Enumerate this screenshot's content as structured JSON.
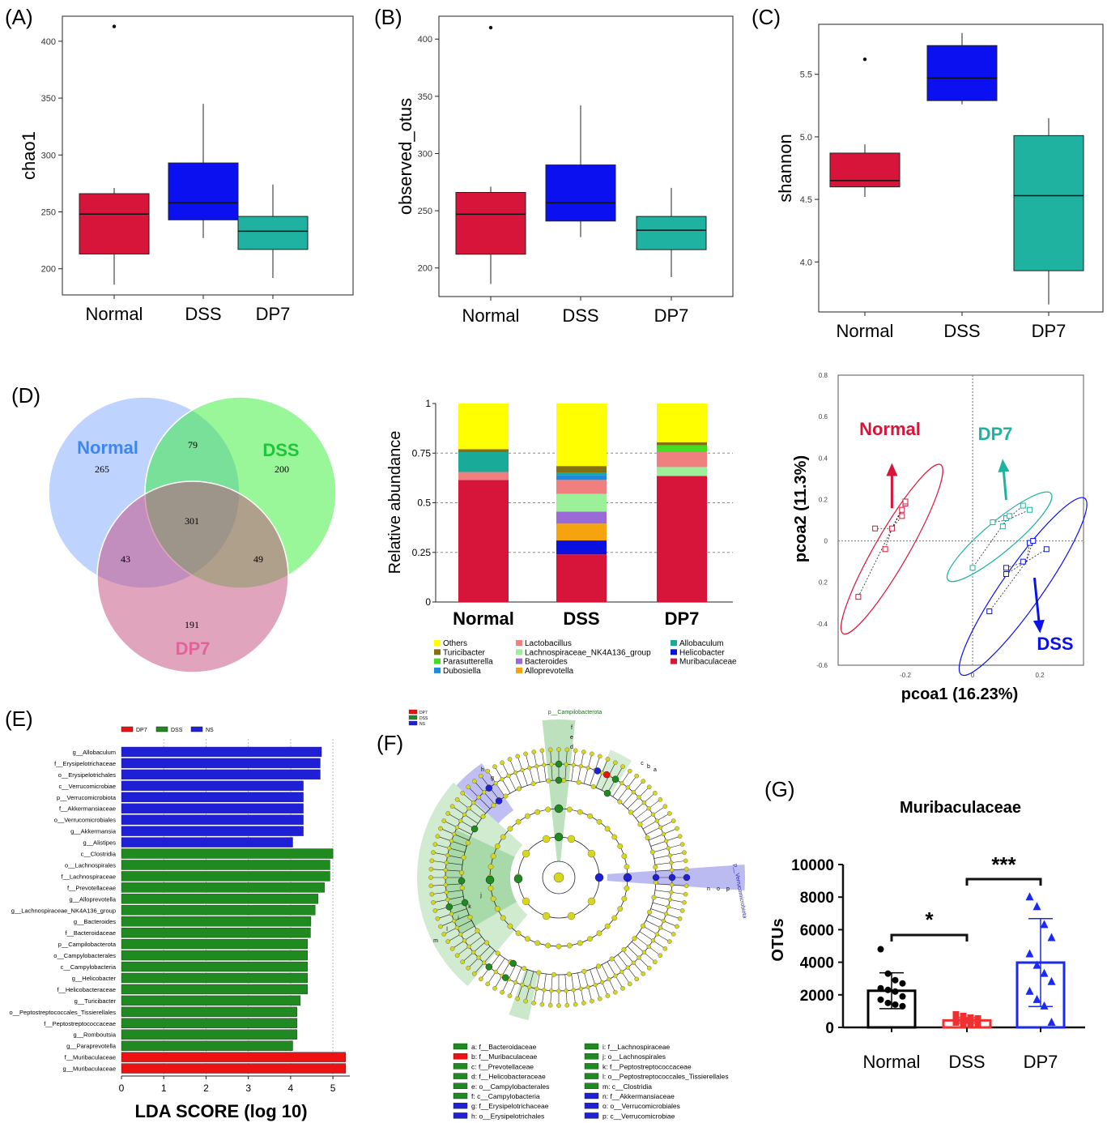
{
  "panel_labels": [
    "(A)",
    "(B)",
    "(C)",
    "(D)",
    "(E)",
    "(F)",
    "(G)"
  ],
  "colors": {
    "normal": "#d7153a",
    "dss": "#0a10f0",
    "dp7": "#20b2a0",
    "lefse_dp7": "#ee1111",
    "lefse_dss": "#1f8a1f",
    "lefse_ns": "#1f1fd6",
    "venn_normal": "#7fa8ff",
    "venn_dss": "#33ee33",
    "venn_dp7": "#c44a7c"
  },
  "chart_data": [
    {
      "id": "A",
      "type": "box",
      "ylabel": "chao1",
      "categories": [
        "Normal",
        "DSS",
        "DP7"
      ],
      "ylim": [
        177,
        422
      ],
      "yticks": [
        200,
        250,
        300,
        350,
        400
      ],
      "boxes": [
        {
          "min": 186,
          "q1": 213,
          "median": 248,
          "q3": 266,
          "max": 271,
          "outliers": [
            413
          ]
        },
        {
          "min": 227,
          "q1": 243,
          "median": 258,
          "q3": 293,
          "max": 345,
          "outliers": []
        },
        {
          "min": 192,
          "q1": 217,
          "median": 233,
          "q3": 246,
          "max": 274,
          "outliers": []
        }
      ]
    },
    {
      "id": "B",
      "type": "box",
      "ylabel": "observed_otus",
      "categories": [
        "Normal",
        "DSS",
        "DP7"
      ],
      "ylim": [
        175,
        420
      ],
      "yticks": [
        200,
        250,
        300,
        350,
        400
      ],
      "boxes": [
        {
          "min": 186,
          "q1": 212,
          "median": 247,
          "q3": 266,
          "max": 271,
          "outliers": [
            410
          ]
        },
        {
          "min": 227,
          "q1": 241,
          "median": 257,
          "q3": 290,
          "max": 342,
          "outliers": []
        },
        {
          "min": 192,
          "q1": 216,
          "median": 233,
          "q3": 245,
          "max": 270,
          "outliers": []
        }
      ]
    },
    {
      "id": "C",
      "type": "box",
      "ylabel": "shannon",
      "categories": [
        "Normal",
        "DSS",
        "DP7"
      ],
      "ylim": [
        3.6,
        5.9
      ],
      "yticks": [
        4.0,
        4.5,
        5.0,
        5.5
      ],
      "ytick_labels": [
        "4.0",
        "4.5",
        "5.0",
        "5.5"
      ],
      "boxes": [
        {
          "min": 4.52,
          "q1": 4.6,
          "median": 4.65,
          "q3": 4.87,
          "max": 4.94,
          "outliers": [
            5.62
          ]
        },
        {
          "min": 5.26,
          "q1": 5.29,
          "median": 5.47,
          "q3": 5.73,
          "max": 5.83,
          "outliers": []
        },
        {
          "min": 3.66,
          "q1": 3.93,
          "median": 4.53,
          "q3": 5.01,
          "max": 5.15,
          "outliers": []
        }
      ]
    },
    {
      "id": "D-venn",
      "type": "venn",
      "sets": [
        "Normal",
        "DSS",
        "DP7"
      ],
      "regions": {
        "normal_only": "265",
        "dss_only": "200",
        "dp7_only": "191",
        "normal_dss": "79",
        "normal_dp7": "43",
        "dss_dp7": "49",
        "all": "301"
      }
    },
    {
      "id": "D-bar",
      "type": "bar",
      "stacked": true,
      "ylabel": "Relative abundance",
      "categories": [
        "Normal",
        "DSS",
        "DP7"
      ],
      "ylim": [
        0,
        1
      ],
      "yticks": [
        0,
        0.25,
        0.5,
        0.75,
        1
      ],
      "ytick_labels": [
        "0",
        "0.25",
        "0.5",
        "0.75",
        "1"
      ],
      "series": [
        {
          "name": "Muribaculaceae",
          "color": "#d7153a",
          "values": [
            0.615,
            0.24,
            0.635
          ]
        },
        {
          "name": "Helicobacter",
          "color": "#0a10e0",
          "values": [
            0,
            0.07,
            0
          ]
        },
        {
          "name": "Alloprevotella",
          "color": "#f5a30f",
          "values": [
            0,
            0.085,
            0
          ]
        },
        {
          "name": "Bacteroides",
          "color": "#9a6bd6",
          "values": [
            0,
            0.06,
            0
          ]
        },
        {
          "name": "Lachnospiraceae_NK4A136_group",
          "color": "#9df09a",
          "values": [
            0,
            0.09,
            0.045
          ]
        },
        {
          "name": "Lactobacillus",
          "color": "#f08080",
          "values": [
            0.04,
            0.07,
            0.075
          ]
        },
        {
          "name": "Dubosiella",
          "color": "#1c8ce0",
          "values": [
            0,
            0.025,
            0
          ]
        },
        {
          "name": "Parasutterella",
          "color": "#44dd22",
          "values": [
            0,
            0,
            0.035
          ]
        },
        {
          "name": "Allobaculum",
          "color": "#1aaa9a",
          "values": [
            0.1,
            0.01,
            0
          ]
        },
        {
          "name": "Turicibacter",
          "color": "#85720e",
          "values": [
            0.015,
            0.035,
            0.015
          ]
        },
        {
          "name": "Others",
          "color": "#ffff00",
          "values": [
            0.23,
            0.315,
            0.195
          ]
        }
      ],
      "legend_order": [
        "Others",
        "Turicibacter",
        "Parasutterella",
        "Dubosiella",
        "Lactobacillus",
        "Lachnospiraceae_NK4A136_group",
        "Bacteroides",
        "Alloprevotella",
        "Allobaculum",
        "Helicobacter",
        "Muribaculaceae"
      ]
    },
    {
      "id": "D-pcoa",
      "type": "scatter",
      "xlabel": "pcoa1 (16.23%)",
      "ylabel": "pcoa2 (11.3%)",
      "xlim": [
        -0.4,
        0.33
      ],
      "ylim": [
        -0.6,
        0.8
      ],
      "xticks": [
        -0.2,
        0,
        0.2
      ],
      "xtick_labels": [
        "-0.2",
        "0",
        "0.2"
      ],
      "yticks": [
        0.8,
        0.6,
        0.4,
        0.2,
        0,
        -0.2,
        -0.4,
        -0.6
      ],
      "ytick_labels": [
        "0.8",
        "0.6",
        "0.4",
        "0.2",
        "0",
        "0.2",
        "-0.4",
        "-0.6"
      ],
      "series": [
        {
          "name": "Normal",
          "color": "#d7153a",
          "points": [
            [
              -0.34,
              -0.27
            ],
            [
              -0.29,
              0.06
            ],
            [
              -0.26,
              -0.04
            ],
            [
              -0.24,
              0.06
            ],
            [
              -0.21,
              0.15
            ],
            [
              -0.21,
              0.12
            ],
            [
              -0.2,
              0.18
            ],
            [
              -0.2,
              0.19
            ]
          ],
          "centroid": [
            -0.24,
            0.06
          ],
          "arrow_to": [
            -0.24,
            0.36
          ],
          "ellipse": {
            "cx": -0.24,
            "cy": -0.04,
            "rx": 0.29,
            "ry": 0.05,
            "angle": 60
          }
        },
        {
          "name": "DP7",
          "color": "#20b2a0",
          "points": [
            [
              0,
              -0.13
            ],
            [
              0.06,
              0.09
            ],
            [
              0.09,
              0.07
            ],
            [
              0.1,
              0.11
            ],
            [
              0.11,
              0.12
            ],
            [
              0.15,
              0.17
            ],
            [
              0.17,
              0.15
            ]
          ],
          "centroid": [
            0.1,
            0.1
          ],
          "arrow_to": [
            0.09,
            0.38
          ],
          "ellipse": {
            "cx": 0.08,
            "cy": 0.02,
            "rx": 0.2,
            "ry": 0.045,
            "angle": 40
          }
        },
        {
          "name": "DSS",
          "color": "#0a10f0",
          "points": [
            [
              0.05,
              -0.34
            ],
            [
              0.1,
              -0.16
            ],
            [
              0.1,
              -0.13
            ],
            [
              0.15,
              -0.1
            ],
            [
              0.17,
              -0.01
            ],
            [
              0.18,
              0
            ],
            [
              0.22,
              -0.04
            ]
          ],
          "centroid": [
            0.16,
            -0.1
          ],
          "arrow_to": [
            0.2,
            -0.43
          ],
          "ellipse": {
            "cx": 0.15,
            "cy": -0.22,
            "rx": 0.32,
            "ry": 0.06,
            "angle": 55
          }
        }
      ]
    },
    {
      "id": "E",
      "type": "bar",
      "orientation": "horizontal",
      "xlabel": "LDA SCORE (log 10)",
      "xlim": [
        0,
        5.4
      ],
      "xticks": [
        0,
        1,
        2,
        3,
        4,
        5
      ],
      "legend": [
        {
          "name": "DP7",
          "color": "#ee1111"
        },
        {
          "name": "DSS",
          "color": "#1f8a1f"
        },
        {
          "name": "NS",
          "color": "#1f1fd6"
        }
      ],
      "bars": [
        {
          "label": "g__Allobaculum",
          "value": 4.73,
          "group": "NS"
        },
        {
          "label": "f__Erysipelotrichaceae",
          "value": 4.7,
          "group": "NS"
        },
        {
          "label": "o__Erysipelotrichales",
          "value": 4.7,
          "group": "NS"
        },
        {
          "label": "c__Verrucomicrobiae",
          "value": 4.3,
          "group": "NS"
        },
        {
          "label": "p__Verrucomicrobiota",
          "value": 4.3,
          "group": "NS"
        },
        {
          "label": "f__Akkermansiaceae",
          "value": 4.3,
          "group": "NS"
        },
        {
          "label": "o__Verrucomicrobiales",
          "value": 4.3,
          "group": "NS"
        },
        {
          "label": "g__Akkermansia",
          "value": 4.3,
          "group": "NS"
        },
        {
          "label": "g__Alistipes",
          "value": 4.05,
          "group": "NS"
        },
        {
          "label": "c__Clostridia",
          "value": 5.0,
          "group": "DSS"
        },
        {
          "label": "o__Lachnospirales",
          "value": 4.93,
          "group": "DSS"
        },
        {
          "label": "f__Lachnospiraceae",
          "value": 4.93,
          "group": "DSS"
        },
        {
          "label": "f__Prevotellaceae",
          "value": 4.8,
          "group": "DSS"
        },
        {
          "label": "g__Alloprevotella",
          "value": 4.65,
          "group": "DSS"
        },
        {
          "label": "g__Lachnospiraceae_NK4A136_group",
          "value": 4.58,
          "group": "DSS"
        },
        {
          "label": "g__Bacteroides",
          "value": 4.48,
          "group": "DSS"
        },
        {
          "label": "f__Bacteroidaceae",
          "value": 4.47,
          "group": "DSS"
        },
        {
          "label": "p__Campilobacterota",
          "value": 4.4,
          "group": "DSS"
        },
        {
          "label": "o__Campylobacterales",
          "value": 4.4,
          "group": "DSS"
        },
        {
          "label": "c__Campylobacteria",
          "value": 4.4,
          "group": "DSS"
        },
        {
          "label": "g__Helicobacter",
          "value": 4.4,
          "group": "DSS"
        },
        {
          "label": "f__Helicobacteraceae",
          "value": 4.4,
          "group": "DSS"
        },
        {
          "label": "g__Turicibacter",
          "value": 4.23,
          "group": "DSS"
        },
        {
          "label": "o__Peptostreptococcales_Tissierellales",
          "value": 4.15,
          "group": "DSS"
        },
        {
          "label": "f__Peptostreptococcaceae",
          "value": 4.15,
          "group": "DSS"
        },
        {
          "label": "g__Romboutsia",
          "value": 4.15,
          "group": "DSS"
        },
        {
          "label": "g__Paraprevotella",
          "value": 4.05,
          "group": "DSS"
        },
        {
          "label": "f__Muribaculaceae",
          "value": 5.3,
          "group": "DP7"
        },
        {
          "label": "g__Muribaculaceae",
          "value": 5.3,
          "group": "DP7"
        }
      ]
    },
    {
      "id": "G",
      "type": "bar",
      "title": "Muribaculaceae",
      "ylabel": "OTUs",
      "categories": [
        "Normal",
        "DSS",
        "DP7"
      ],
      "ylim": [
        0,
        10000
      ],
      "yticks": [
        0,
        2000,
        4000,
        6000,
        8000,
        10000
      ],
      "values": [
        2250,
        430,
        3980
      ],
      "sd": [
        1100,
        170,
        2700
      ],
      "series_colors": [
        "#000000",
        "#f03030",
        "#1a2af0"
      ],
      "points": [
        [
          4800,
          3300,
          2900,
          2700,
          2400,
          2300,
          2200,
          1900,
          1700,
          1500,
          1400,
          1300
        ],
        [
          800,
          700,
          600,
          550,
          500,
          450,
          400,
          350,
          300,
          250,
          200,
          150
        ],
        [
          8000,
          7400,
          6300,
          5500,
          4500,
          3800,
          3300,
          2800,
          2200,
          1700,
          1300,
          300
        ]
      ],
      "significance": [
        {
          "between": [
            "Normal",
            "DSS"
          ],
          "label": "*"
        },
        {
          "between": [
            "DSS",
            "DP7"
          ],
          "label": "***"
        }
      ]
    }
  ],
  "cladogram": {
    "top_label": "p__Campilobacterota",
    "right_label": "p__Verrucomicrobiota",
    "legend": [
      {
        "name": "DP7",
        "color": "#ee1111"
      },
      {
        "name": "DSS",
        "color": "#1f8a1f"
      },
      {
        "name": "NS",
        "color": "#1f1fd6"
      }
    ],
    "sector_letters_top": [
      "f",
      "e",
      "d"
    ],
    "sector_letters_right": [
      "p",
      "o",
      "n"
    ],
    "sector_letters_left": [
      "h",
      "g"
    ],
    "sector_letters_topright": [
      "c",
      "b",
      "a"
    ],
    "sector_letters_bottomleft": [
      "m",
      "l",
      "i",
      "k",
      "j"
    ],
    "key_left": [
      {
        "text": "a: f__Bacteroidaceae",
        "color": "#1f8a1f"
      },
      {
        "text": "b: f__Muribaculaceae",
        "color": "#ee1111"
      },
      {
        "text": "c: f__Prevotellaceae",
        "color": "#1f8a1f"
      },
      {
        "text": "d: f__Helicobacteraceae",
        "color": "#1f8a1f"
      },
      {
        "text": "e: o__Campylobacterales",
        "color": "#1f8a1f"
      },
      {
        "text": "f: c__Campylobacteria",
        "color": "#1f8a1f"
      },
      {
        "text": "g: f__Erysipelotrichaceae",
        "color": "#1f1fd6"
      },
      {
        "text": "h: o__Erysipelotrichales",
        "color": "#1f1fd6"
      }
    ],
    "key_right": [
      {
        "text": "i: f__Lachnospiraceae",
        "color": "#1f8a1f"
      },
      {
        "text": "j: o__Lachnospirales",
        "color": "#1f8a1f"
      },
      {
        "text": "k: f__Peptostreptococcaceae",
        "color": "#1f8a1f"
      },
      {
        "text": "l: o__Peptostreptococcales_Tissierellales",
        "color": "#1f8a1f"
      },
      {
        "text": "m: c__Clostridia",
        "color": "#1f8a1f"
      },
      {
        "text": "n: f__Akkermansiaceae",
        "color": "#1f1fd6"
      },
      {
        "text": "o: o__Verrucomicrobiales",
        "color": "#1f1fd6"
      },
      {
        "text": "p: c__Verrucomicrobiae",
        "color": "#1f1fd6"
      }
    ]
  }
}
